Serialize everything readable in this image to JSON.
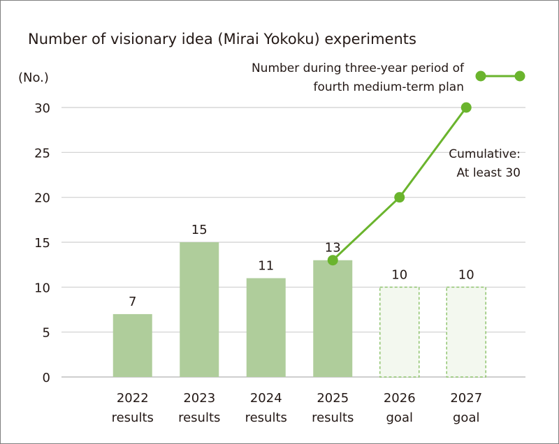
{
  "chart_data": {
    "type": "bar",
    "title": "Number of visionary idea (Mirai Yokoku) experiments",
    "unit_label": "(No.)",
    "ylim": [
      0,
      30
    ],
    "yticks": [
      "0",
      "5",
      "10",
      "15",
      "20",
      "25",
      "30"
    ],
    "categories": [
      {
        "line1": "2022",
        "line2": "results"
      },
      {
        "line1": "2023",
        "line2": "results"
      },
      {
        "line1": "2024",
        "line2": "results"
      },
      {
        "line1": "2025",
        "line2": "results"
      },
      {
        "line1": "2026",
        "line2": "goal"
      },
      {
        "line1": "2027",
        "line2": "goal"
      }
    ],
    "values": [
      7,
      15,
      11,
      13,
      10,
      10
    ],
    "value_labels": [
      "7",
      "15",
      "11",
      "13",
      "10",
      "10"
    ],
    "bar_kind": [
      "result",
      "result",
      "result",
      "result",
      "goal",
      "goal"
    ],
    "cumulative_line": {
      "points": [
        {
          "category_index": 3,
          "value": 13
        },
        {
          "category_index": 4,
          "value": 20
        },
        {
          "category_index": 5,
          "value": 30
        }
      ]
    },
    "legend": {
      "label_line1": "Number during three-year period of",
      "label_line2": "fourth medium-term plan"
    },
    "annotation": {
      "line1": "Cumulative:",
      "line2": "At least 30"
    },
    "grid": true,
    "colors": {
      "result_bar": "#afcd9b",
      "goal_bar_fill": "#f3f8ef",
      "goal_bar_stroke": "#8fc46e",
      "line": "#6ab42d",
      "grid": "#cfcfcf",
      "axis": "#231815"
    }
  }
}
